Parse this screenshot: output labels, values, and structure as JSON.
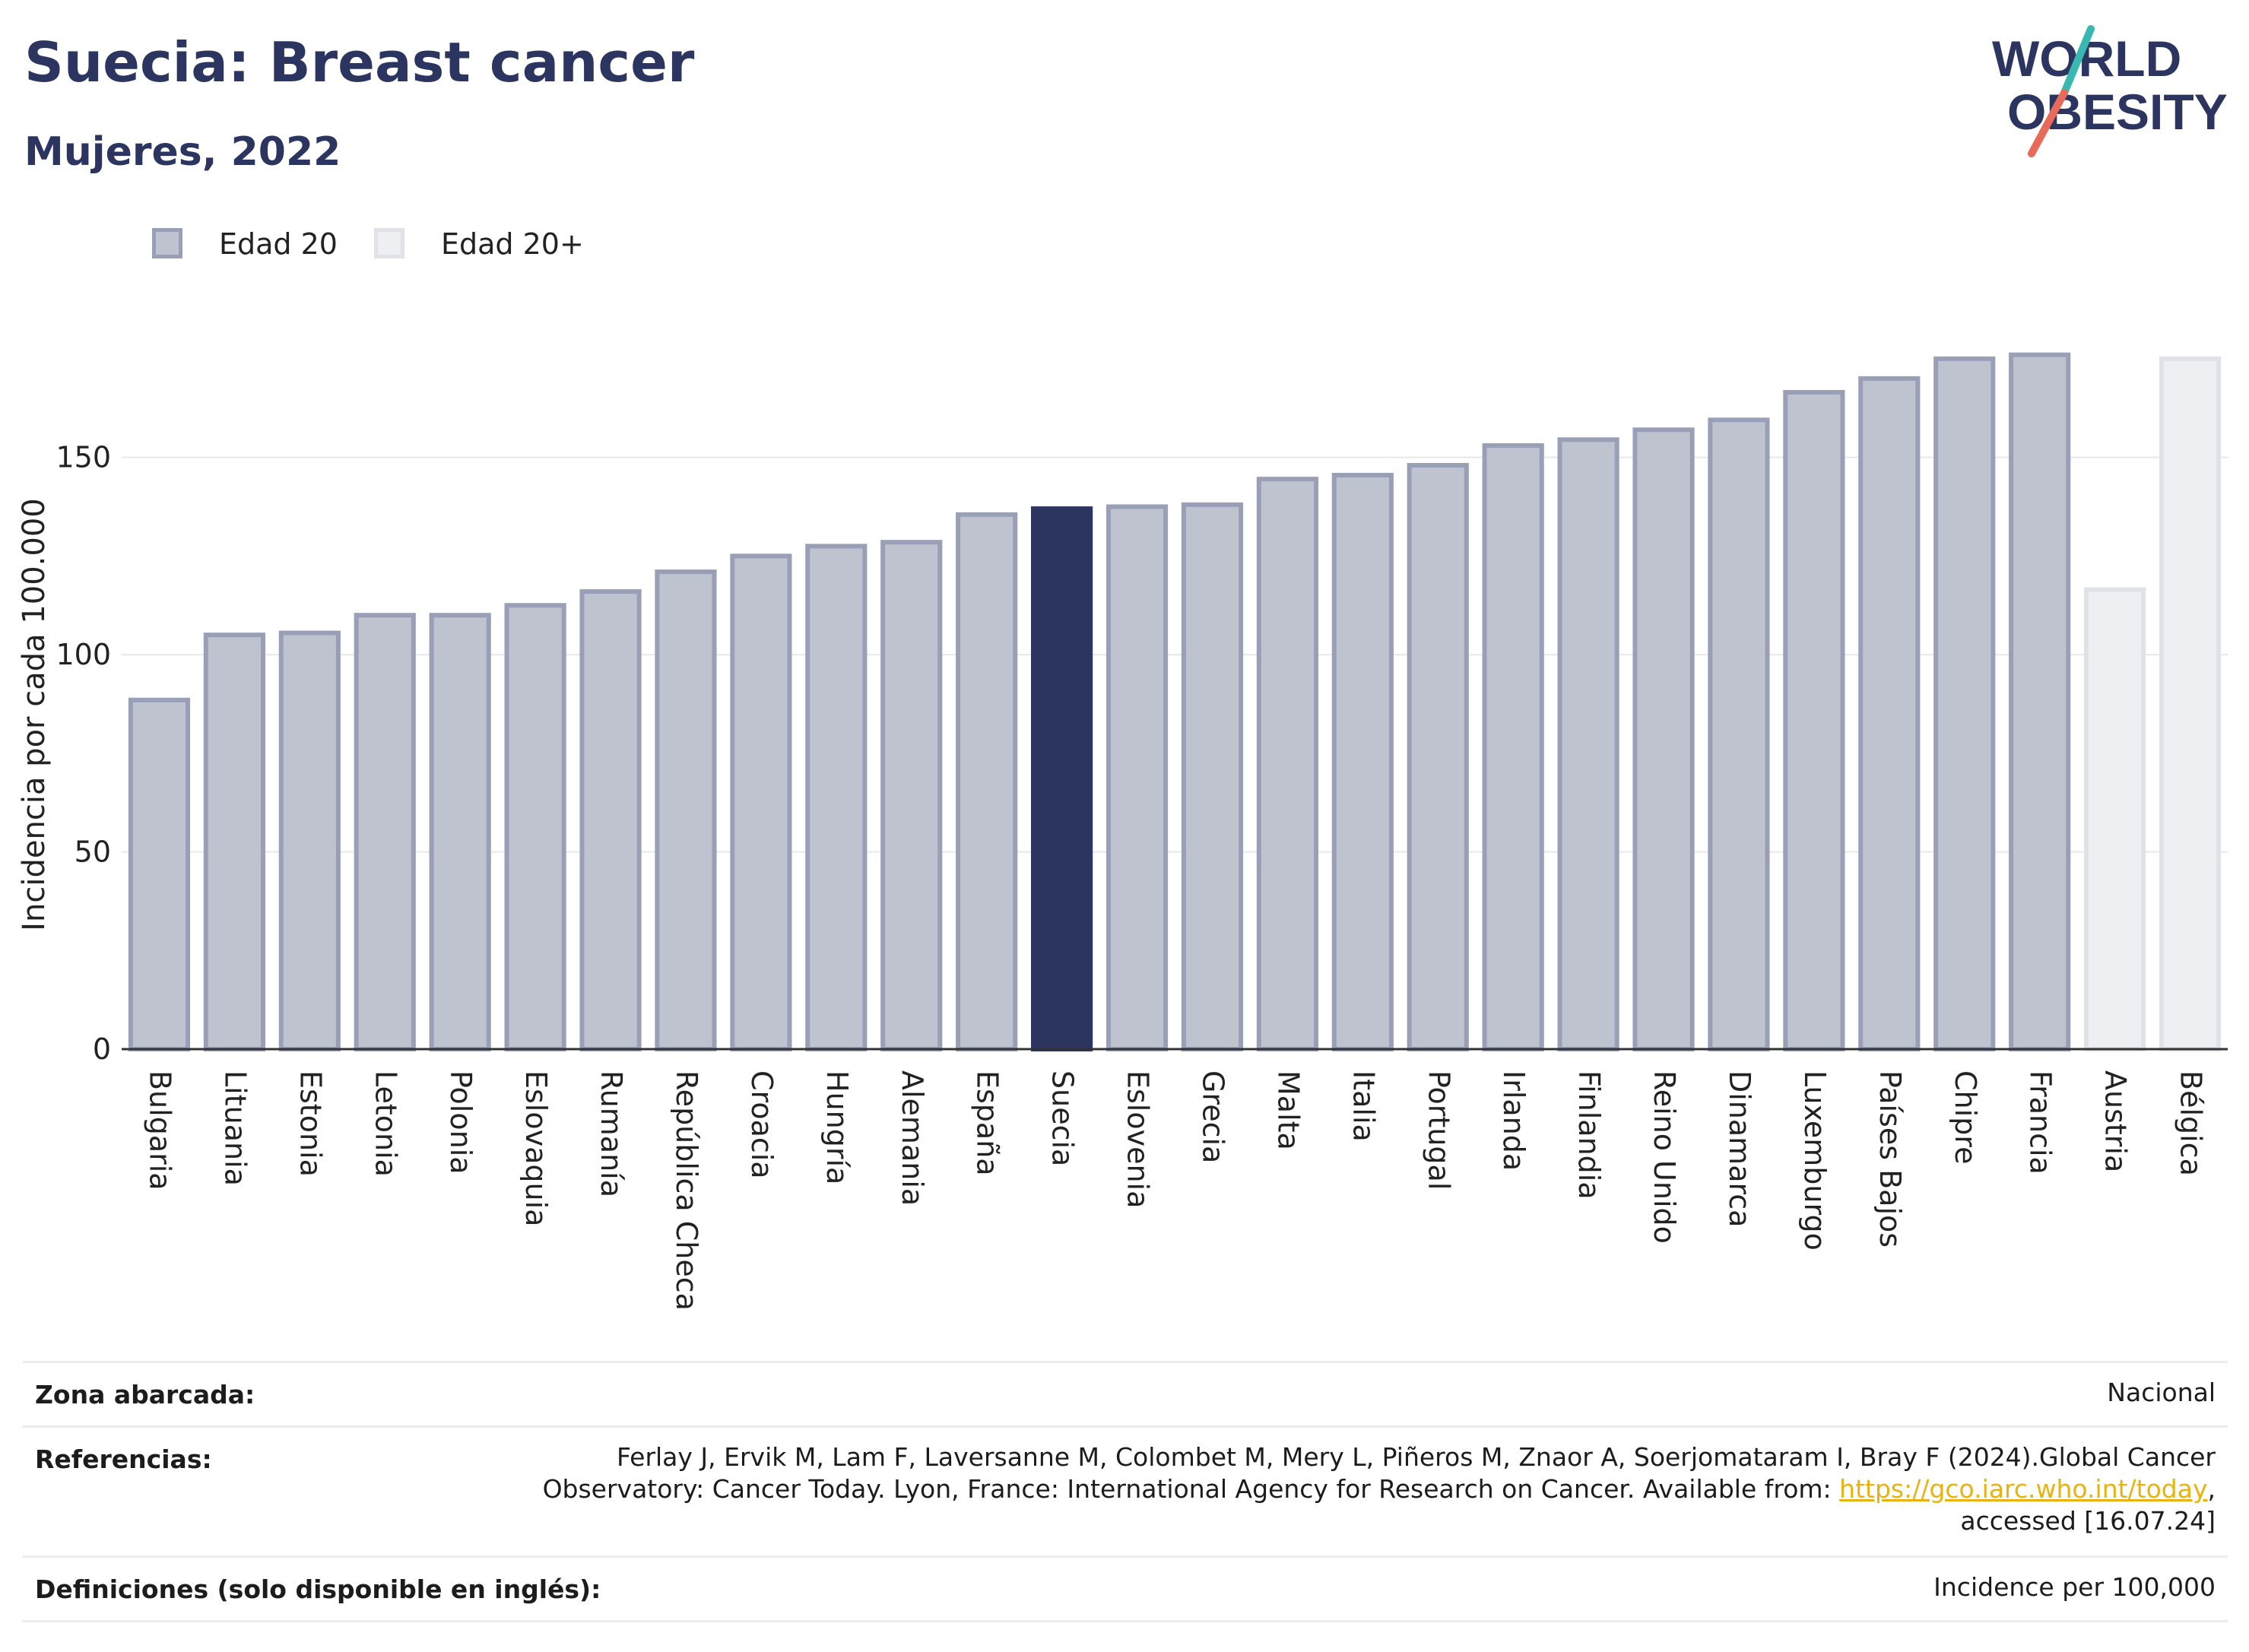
{
  "header": {
    "title": "Suecia: Breast cancer",
    "subtitle": "Mujeres, 2022"
  },
  "logo": {
    "line1": "WORLD",
    "line2": "OBESITY"
  },
  "legend": [
    {
      "label": "Edad 20",
      "color": "#2b3560"
    },
    {
      "label": "Edad 20+",
      "color": "#c7c9d6"
    }
  ],
  "colors": {
    "primary": "#2b3560",
    "bar_fill_muted": "#bfc2cf",
    "bar_stroke_muted": "#9a9fb8",
    "bar_fill_light": "#eeeff3",
    "bar_stroke_light": "#e1e2e9",
    "highlight": "#2b3560",
    "link": "#e8b311"
  },
  "chart_data": {
    "type": "bar",
    "title": "",
    "xlabel": "",
    "ylabel": "Incidencia por cada 100.000",
    "ylim": [
      0,
      185
    ],
    "yticks": [
      0,
      50,
      100,
      150
    ],
    "grid": true,
    "legend_position": "top-left",
    "highlight": "Suecia",
    "categories": [
      "Bulgaria",
      "Lituania",
      "Estonia",
      "Letonia",
      "Polonia",
      "Eslovaquia",
      "Rumanía",
      "República Checa",
      "Croacia",
      "Hungría",
      "Alemania",
      "España",
      "Suecia",
      "Eslovenia",
      "Grecia",
      "Malta",
      "Italia",
      "Portugal",
      "Irlanda",
      "Finlandia",
      "Reino Unido",
      "Dinamarca",
      "Luxemburgo",
      "Países Bajos",
      "Chipre",
      "Francia",
      "Austria",
      "Bélgica"
    ],
    "series": [
      {
        "name": "Edad 20",
        "values": [
          88.5,
          105,
          105.5,
          110,
          110,
          112.5,
          116,
          121,
          125,
          127.5,
          128.5,
          135.5,
          137,
          137.5,
          138,
          144.5,
          145.5,
          148,
          153,
          154.5,
          157,
          159.5,
          166.5,
          170,
          175,
          176,
          null,
          null
        ]
      },
      {
        "name": "Edad 20+",
        "values": [
          null,
          null,
          null,
          null,
          null,
          null,
          null,
          null,
          null,
          null,
          null,
          null,
          null,
          null,
          null,
          null,
          null,
          null,
          null,
          null,
          null,
          null,
          null,
          null,
          null,
          null,
          116.5,
          175
        ]
      }
    ]
  },
  "footer": {
    "rows": [
      {
        "label": "Zona abarcada:",
        "value": "Nacional"
      },
      {
        "label": "Referencias:",
        "value_line1": "Ferlay J, Ervik M, Lam F, Laversanne M, Colombet M, Mery L, Piñeros M, Znaor A, Soerjomataram I, Bray F (2024).Global Cancer",
        "value_line2_prefix": "Observatory: Cancer Today. Lyon, France: International Agency for Research on Cancer. Available from: ",
        "value_link": "https://gco.iarc.who.int/today",
        "value_line2_suffix": ",",
        "value_line3": "accessed [16.07.24]"
      },
      {
        "label": "Definiciones (solo disponible en inglés):",
        "value": "Incidence per 100,000"
      }
    ]
  }
}
